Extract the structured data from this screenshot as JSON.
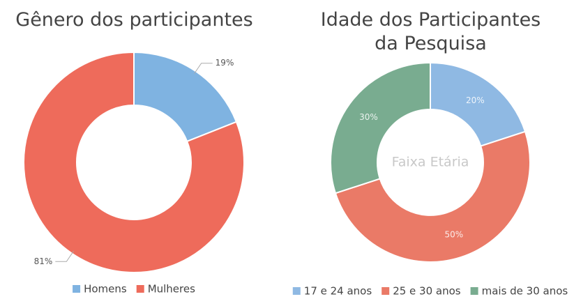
{
  "chart_data": [
    {
      "type": "donut",
      "title": "Gênero dos participantes",
      "categories": [
        "Homens",
        "Mulheres"
      ],
      "values": [
        19,
        81
      ],
      "value_labels": [
        "19%",
        "81%"
      ],
      "colors": [
        "#7fb3e1",
        "#ee6b5b"
      ],
      "label_position": "outside",
      "legend": "bottom"
    },
    {
      "type": "donut",
      "title": "Idade dos Participantes da Pesquisa",
      "center_label": "Faixa Etária",
      "categories": [
        "17 e 24 anos",
        "25 e 30 anos",
        "mais de 30 anos"
      ],
      "values": [
        20,
        50,
        30
      ],
      "value_labels": [
        "20%",
        "50%",
        "30%"
      ],
      "colors": [
        "#8fb9e3",
        "#ea7a67",
        "#79ac90"
      ],
      "label_position": "inside",
      "legend": "bottom"
    }
  ]
}
